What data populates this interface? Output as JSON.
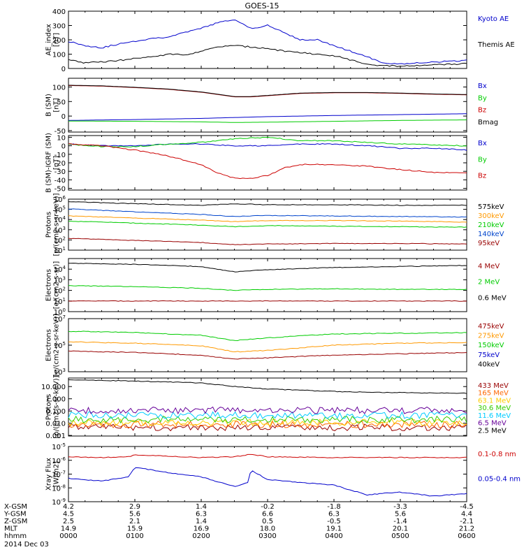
{
  "title": "GOES-15",
  "date_label": "2014 Dec 03",
  "time_ticks": [
    "0000",
    "0100",
    "0200",
    "0300",
    "0400",
    "0500",
    "0600"
  ],
  "ephemeris": [
    {
      "label": "X-GSM",
      "values": [
        "4.2",
        "2.9",
        "1.4",
        "-0.2",
        "-1.8",
        "-3.3",
        "-4.5"
      ]
    },
    {
      "label": "Y-GSM",
      "values": [
        "4.5",
        "5.6",
        "6.3",
        "6.6",
        "6.3",
        "5.6",
        "4.4"
      ]
    },
    {
      "label": "Z-GSM",
      "values": [
        "2.5",
        "2.1",
        "1.4",
        "0.5",
        "-0.5",
        "-1.4",
        "-2.1"
      ]
    },
    {
      "label": "MLT",
      "values": [
        "14.9",
        "15.9",
        "16.9",
        "18.0",
        "19.1",
        "20.1",
        "21.2"
      ]
    },
    {
      "label": "hhmm",
      "values": [
        "0000",
        "0100",
        "0200",
        "0300",
        "0400",
        "0500",
        "0600"
      ]
    }
  ],
  "chart_data": [
    {
      "type": "line",
      "title": "GOES-15",
      "ylabel": "AE_index\n[nT]",
      "ylim": [
        0,
        400
      ],
      "yscale": "linear",
      "yticks": [
        "0",
        "100",
        "200",
        "300",
        "400"
      ],
      "series": [
        {
          "name": "Kyoto AE",
          "color": "#0000cc",
          "x": [
            0,
            0.25,
            0.5,
            0.75,
            1,
            1.25,
            1.5,
            1.75,
            2,
            2.25,
            2.5,
            2.75,
            3,
            3.25,
            3.5,
            3.75,
            4,
            4.25,
            4.5,
            4.75,
            5,
            5.25,
            5.5,
            5.75,
            6
          ],
          "values": [
            190,
            160,
            145,
            170,
            190,
            210,
            220,
            250,
            280,
            320,
            340,
            280,
            300,
            250,
            200,
            200,
            160,
            120,
            80,
            40,
            30,
            40,
            45,
            50,
            55
          ]
        },
        {
          "name": "Themis AE",
          "color": "#000000",
          "x": [
            0,
            0.25,
            0.5,
            0.75,
            1,
            1.25,
            1.5,
            1.75,
            2,
            2.25,
            2.5,
            2.75,
            3,
            3.25,
            3.5,
            3.75,
            4,
            4.25,
            4.5,
            4.75,
            5,
            5.25,
            5.5,
            5.75,
            6
          ],
          "values": [
            60,
            40,
            45,
            55,
            70,
            80,
            100,
            95,
            120,
            150,
            160,
            150,
            140,
            120,
            110,
            100,
            90,
            60,
            30,
            20,
            15,
            20,
            25,
            30,
            35
          ]
        }
      ]
    },
    {
      "type": "line",
      "ylabel": "B (SM)\n[nT]",
      "ylim": [
        -55,
        130
      ],
      "yscale": "linear",
      "yticks": [
        "-50",
        "0",
        "50",
        "100"
      ],
      "series": [
        {
          "name": "Bx",
          "color": "#0000cc",
          "x": [
            0,
            1,
            2,
            2.5,
            3,
            4,
            5,
            6
          ],
          "values": [
            -15,
            -12,
            -8,
            -5,
            -2,
            2,
            5,
            8
          ]
        },
        {
          "name": "By",
          "color": "#00cc00",
          "x": [
            0,
            1,
            2,
            2.5,
            3,
            4,
            5,
            6
          ],
          "values": [
            -17,
            -18,
            -20,
            -22,
            -21,
            -18,
            -15,
            -13
          ]
        },
        {
          "name": "Bz",
          "color": "#cc0000",
          "x": [
            0,
            0.5,
            1,
            1.5,
            2,
            2.5,
            2.75,
            3,
            3.5,
            4,
            4.5,
            5,
            5.5,
            6
          ],
          "values": [
            105,
            103,
            98,
            92,
            82,
            66,
            66,
            70,
            78,
            80,
            80,
            78,
            75,
            73
          ]
        },
        {
          "name": "Bmag",
          "color": "#000000",
          "x": [
            0,
            0.5,
            1,
            1.5,
            2,
            2.5,
            2.75,
            3,
            3.5,
            4,
            4.5,
            5,
            5.5,
            6
          ],
          "values": [
            106,
            104,
            99,
            93,
            83,
            67,
            67,
            71,
            79,
            81,
            81,
            79,
            76,
            74
          ]
        }
      ]
    },
    {
      "type": "line",
      "ylabel": "B (SM)-IGRF (SM)\n[nT]",
      "ylim": [
        -52,
        12
      ],
      "yscale": "linear",
      "yticks": [
        "-50",
        "-40",
        "-30",
        "-20",
        "-10",
        "0",
        "10"
      ],
      "series": [
        {
          "name": "Bx",
          "color": "#0000cc",
          "x": [
            0,
            0.5,
            1,
            1.5,
            2,
            2.5,
            3,
            3.5,
            4,
            4.5,
            5,
            5.5,
            6
          ],
          "values": [
            2,
            0,
            0,
            2,
            2,
            0,
            0,
            2,
            2,
            0,
            -3,
            -3,
            -5
          ]
        },
        {
          "name": "By",
          "color": "#00cc00",
          "x": [
            0,
            0.5,
            1,
            1.5,
            2,
            2.5,
            3,
            3.5,
            4,
            4.5,
            5,
            5.5,
            6
          ],
          "values": [
            2,
            -1,
            -1,
            2,
            4,
            8,
            10,
            6,
            6,
            4,
            2,
            1,
            0
          ]
        },
        {
          "name": "Bz",
          "color": "#cc0000",
          "x": [
            0,
            0.5,
            1,
            1.5,
            2,
            2.25,
            2.5,
            2.75,
            3,
            3.25,
            3.5,
            4,
            4.5,
            5,
            5.5,
            6
          ],
          "values": [
            2,
            0,
            -5,
            -12,
            -22,
            -32,
            -38,
            -38,
            -35,
            -26,
            -22,
            -22,
            -24,
            -28,
            -31,
            -32
          ]
        }
      ]
    },
    {
      "type": "line",
      "ylabel": "Protons\n[p/(cm2-s-sr-keV)]",
      "ylim": [
        1,
        6
      ],
      "yscale": "log10-exponent",
      "yticks": [
        "10^1",
        "10^2",
        "10^3",
        "10^4",
        "10^5",
        "10^6"
      ],
      "series": [
        {
          "name": "575keV",
          "color": "#000000",
          "x": [
            0,
            1,
            2,
            2.5,
            3,
            4,
            5,
            6
          ],
          "values": [
            5.75,
            5.55,
            5.4,
            5.55,
            5.45,
            5.45,
            5.4,
            5.4
          ]
        },
        {
          "name": "300keV",
          "color": "#ff9900",
          "x": [
            0,
            1,
            2,
            2.5,
            3,
            4,
            5,
            6
          ],
          "values": [
            4.35,
            4.15,
            3.95,
            3.8,
            3.9,
            3.9,
            3.85,
            3.75
          ]
        },
        {
          "name": "210keV",
          "color": "#00cc00",
          "x": [
            0,
            1,
            2,
            2.5,
            3,
            4,
            5,
            6
          ],
          "values": [
            3.85,
            3.65,
            3.45,
            3.3,
            3.4,
            3.35,
            3.3,
            3.25
          ]
        },
        {
          "name": "140keV",
          "color": "#0044cc",
          "x": [
            0,
            1,
            2,
            2.5,
            3,
            4,
            5,
            6
          ],
          "values": [
            5.05,
            4.75,
            4.5,
            4.3,
            4.4,
            4.35,
            4.3,
            4.25
          ]
        },
        {
          "name": "95keV",
          "color": "#990000",
          "x": [
            0,
            1,
            2,
            2.5,
            3,
            4,
            5,
            6
          ],
          "values": [
            2.15,
            1.95,
            1.75,
            1.55,
            1.6,
            1.65,
            1.65,
            1.6
          ]
        }
      ]
    },
    {
      "type": "line",
      "ylabel": "Electrons\n[e/(cm2-s-sr)]",
      "ylim": [
        0,
        5
      ],
      "yscale": "log10-exponent",
      "yticks": [
        "10^0",
        "10^1",
        "10^2",
        "10^3",
        "10^4"
      ],
      "series": [
        {
          "name": "4 MeV",
          "color": "#990000",
          "x": [
            0,
            1,
            2,
            3,
            4,
            5,
            6
          ],
          "values": [
            1.0,
            1.0,
            1.0,
            1.0,
            1.0,
            1.0,
            1.0
          ]
        },
        {
          "name": "2 MeV",
          "color": "#00cc00",
          "x": [
            0,
            1,
            2,
            2.5,
            3,
            4,
            5,
            6
          ],
          "values": [
            2.45,
            2.35,
            2.2,
            2.0,
            2.1,
            2.15,
            2.1,
            2.1
          ]
        },
        {
          "name": "0.6 MeV",
          "color": "#000000",
          "x": [
            0,
            1,
            2,
            2.5,
            3,
            4,
            5,
            6
          ],
          "values": [
            4.55,
            4.45,
            4.25,
            3.75,
            3.95,
            4.15,
            4.25,
            4.35
          ]
        }
      ]
    },
    {
      "type": "line",
      "ylabel": "Electrons\n[e/(cm2-s-sr-keV)]",
      "ylim": [
        3,
        7
      ],
      "yscale": "log10-exponent",
      "yticks": [
        "10^3",
        "10^5",
        "10^7"
      ],
      "series": [
        {
          "name": "475keV",
          "color": "#990000",
          "x": [
            0,
            1,
            2,
            2.5,
            3,
            4,
            5,
            6
          ],
          "values": [
            4.55,
            4.45,
            4.25,
            3.95,
            4.05,
            4.25,
            4.35,
            4.45
          ]
        },
        {
          "name": "275keV",
          "color": "#ff9900",
          "x": [
            0,
            1,
            2,
            2.5,
            3,
            4,
            5,
            6
          ],
          "values": [
            5.25,
            5.15,
            4.95,
            4.5,
            4.6,
            5.0,
            5.15,
            5.2
          ]
        },
        {
          "name": "150keV",
          "color": "#00cc00",
          "x": [
            0,
            1,
            2,
            2.5,
            3,
            4,
            5,
            6
          ],
          "values": [
            6.05,
            5.95,
            5.75,
            5.35,
            5.55,
            5.85,
            5.9,
            5.95
          ]
        },
        {
          "name": "75keV",
          "color": "#0000cc",
          "x": [
            0,
            6
          ],
          "values": [
            null,
            null
          ]
        },
        {
          "name": "40keV",
          "color": "#000000",
          "x": [
            0,
            6
          ],
          "values": [
            null,
            null
          ]
        }
      ]
    },
    {
      "type": "line",
      "ylabel": "Protons\n[p/(cm2-s-sr-keV)]",
      "ylim": [
        -3.05,
        1.7
      ],
      "yscale": "log10",
      "yticks": [
        "0.001",
        "0.010",
        "0.100",
        "1.000",
        "10.000"
      ],
      "series": [
        {
          "name": "433 MeV",
          "color": "#990000",
          "x": [
            0,
            6
          ],
          "values": [
            -2.35,
            -2.35
          ]
        },
        {
          "name": "165 MeV",
          "color": "#ff6600",
          "x": [
            0,
            6
          ],
          "values": [
            -2.1,
            -2.1
          ]
        },
        {
          "name": "63.1 MeV",
          "color": "#ffcc00",
          "x": [
            0,
            6
          ],
          "values": [
            -1.95,
            -1.95
          ]
        },
        {
          "name": "30.6 MeV",
          "color": "#33cc00",
          "x": [
            0,
            6
          ],
          "values": [
            -1.7,
            -1.7
          ]
        },
        {
          "name": "11.6 MeV",
          "color": "#00ccff",
          "x": [
            0,
            6
          ],
          "values": [
            -1.35,
            -1.35
          ]
        },
        {
          "name": "6.5 MeV",
          "color": "#660099",
          "x": [
            0,
            6
          ],
          "values": [
            -0.95,
            -0.95
          ]
        },
        {
          "name": "2.5 MeV",
          "color": "#000000",
          "x": [
            0,
            1,
            2,
            2.5,
            3,
            4,
            5,
            6
          ],
          "values": [
            1.55,
            1.45,
            1.3,
            1.0,
            0.8,
            0.6,
            0.5,
            0.45
          ]
        }
      ]
    },
    {
      "type": "line",
      "ylabel": "Xray Flux\n[W/m2]",
      "ylim": [
        -9,
        -5
      ],
      "yscale": "log10-exponent",
      "yticks": [
        "10^-9",
        "10^-8",
        "10^-7",
        "10^-6",
        "10^-5"
      ],
      "series": [
        {
          "name": "0.1-0.8 nm",
          "color": "#cc0000",
          "x": [
            0,
            0.5,
            0.9,
            1,
            1.5,
            2,
            2.5,
            2.75,
            3,
            4,
            5,
            6
          ],
          "values": [
            -5.75,
            -5.8,
            -5.75,
            -5.6,
            -5.7,
            -5.8,
            -5.75,
            -5.55,
            -5.75,
            -5.8,
            -5.8,
            -5.8
          ]
        },
        {
          "name": "0.05-0.4 nm",
          "color": "#0000cc",
          "x": [
            0,
            0.25,
            0.5,
            0.9,
            1,
            1.5,
            2,
            2.5,
            2.7,
            2.75,
            3,
            3.5,
            4,
            4.5,
            5,
            5.5,
            6
          ],
          "values": [
            -7.3,
            -7.4,
            -7.5,
            -7.2,
            -6.5,
            -6.9,
            -7.2,
            -7.9,
            -7.6,
            -6.7,
            -7.4,
            -7.6,
            -7.8,
            -8.5,
            -8.3,
            -8.6,
            -8.4
          ]
        }
      ]
    }
  ]
}
